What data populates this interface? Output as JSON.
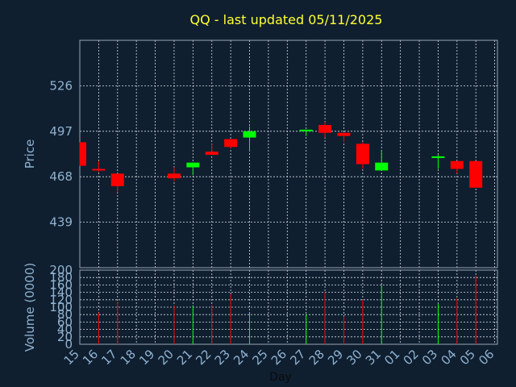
{
  "chart_data": {
    "type": "candlestick",
    "title": "QQ - last updated 05/11/2025",
    "xlabel": "Day",
    "ylabel": "Price",
    "volume_label": "Volume (0000)",
    "price_ylim": [
      410,
      555
    ],
    "price_ticks": [
      439,
      468,
      497,
      526
    ],
    "volume_ylim": [
      0,
      200
    ],
    "volume_ticks": [
      0,
      20,
      40,
      60,
      80,
      100,
      120,
      140,
      160,
      180,
      200
    ],
    "x_ticks": [
      "15",
      "16",
      "17",
      "18",
      "19",
      "20",
      "21",
      "22",
      "23",
      "24",
      "25",
      "26",
      "27",
      "28",
      "29",
      "30",
      "31",
      "01",
      "02",
      "03",
      "04",
      "05",
      "06"
    ],
    "grid": true,
    "colors": {
      "up": "#00ff00",
      "down": "#ff0000",
      "background": "#0f1f30",
      "title": "#ffff33",
      "axis_text": "#8fb2d0"
    },
    "candles": [
      {
        "day": "15",
        "open": 490,
        "high": 490,
        "low": 475,
        "close": 475,
        "volume": 0
      },
      {
        "day": "16",
        "open": 473,
        "high": 478,
        "low": 471,
        "close": 472,
        "volume": 85
      },
      {
        "day": "17",
        "open": 470,
        "high": 470,
        "low": 458,
        "close": 462,
        "volume": 115
      },
      {
        "day": "20",
        "open": 470,
        "high": 474,
        "low": 465,
        "close": 467,
        "volume": 105
      },
      {
        "day": "21",
        "open": 474,
        "high": 477,
        "low": 469,
        "close": 477,
        "volume": 105
      },
      {
        "day": "22",
        "open": 484,
        "high": 489,
        "low": 482,
        "close": 482,
        "volume": 105
      },
      {
        "day": "23",
        "open": 492,
        "high": 492,
        "low": 486,
        "close": 487,
        "volume": 135
      },
      {
        "day": "24",
        "open": 493,
        "high": 500,
        "low": 484,
        "close": 497,
        "volume": 85
      },
      {
        "day": "27",
        "open": 497,
        "high": 498,
        "low": 494,
        "close": 498,
        "volume": 80
      },
      {
        "day": "28",
        "open": 501,
        "high": 503,
        "low": 493,
        "close": 496,
        "volume": 140
      },
      {
        "day": "29",
        "open": 496,
        "high": 496,
        "low": 490,
        "close": 494,
        "volume": 75
      },
      {
        "day": "30",
        "open": 489,
        "high": 490,
        "low": 473,
        "close": 476,
        "volume": 120
      },
      {
        "day": "31",
        "open": 472,
        "high": 485,
        "low": 472,
        "close": 477,
        "volume": 160
      },
      {
        "day": "03",
        "open": 480,
        "high": 482,
        "low": 473,
        "close": 481,
        "volume": 110
      },
      {
        "day": "04",
        "open": 478,
        "high": 478,
        "low": 470,
        "close": 473,
        "volume": 125
      },
      {
        "day": "05",
        "open": 478,
        "high": 478,
        "low": 461,
        "close": 461,
        "volume": 185
      }
    ]
  }
}
